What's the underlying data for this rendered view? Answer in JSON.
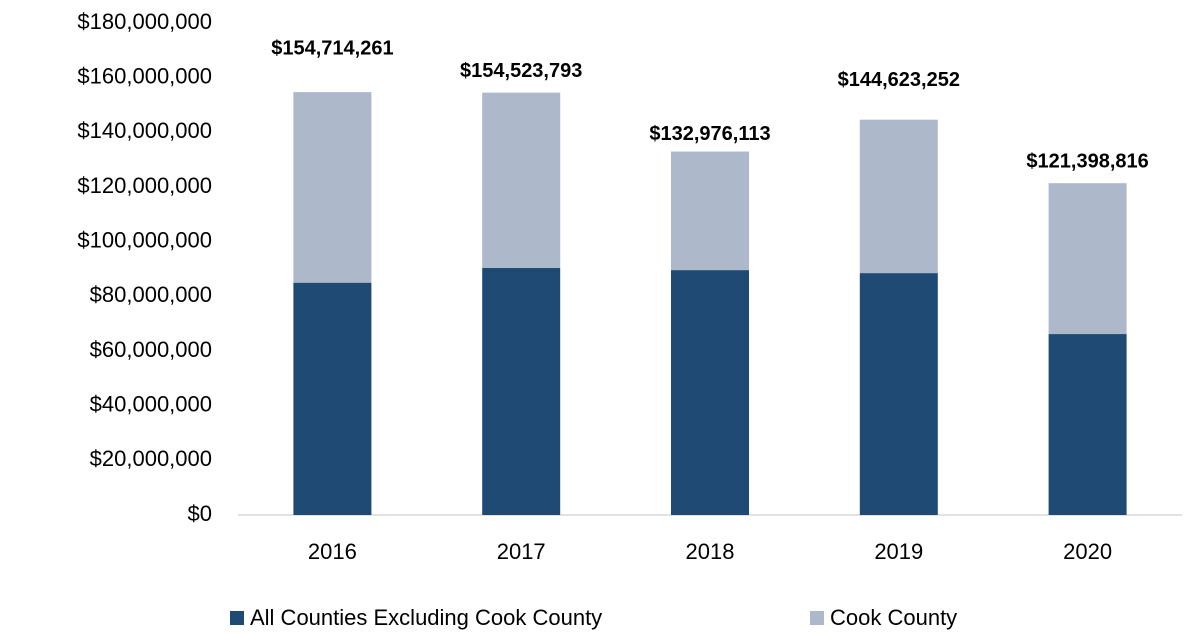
{
  "chart_data": {
    "type": "stacked_bar",
    "categories": [
      "2016",
      "2017",
      "2018",
      "2019",
      "2020"
    ],
    "series": [
      {
        "name": "All Counties Excluding Cook County",
        "color": "#1f4a74",
        "values": [
          85000000,
          90400000,
          89600000,
          88500000,
          66200000
        ]
      },
      {
        "name": "Cook County",
        "color": "#adb9ca",
        "values": [
          69714261,
          64123793,
          43376113,
          56123252,
          55198816
        ]
      }
    ],
    "total_labels": [
      "$154,714,261",
      "$154,523,793",
      "$132,976,113",
      "$144,623,252",
      "$121,398,816"
    ],
    "ylim": [
      0,
      180000000
    ],
    "yticks": [
      {
        "value": 0,
        "label": "$0"
      },
      {
        "value": 20000000,
        "label": "$20,000,000"
      },
      {
        "value": 40000000,
        "label": "$40,000,000"
      },
      {
        "value": 60000000,
        "label": "$60,000,000"
      },
      {
        "value": 80000000,
        "label": "$80,000,000"
      },
      {
        "value": 100000000,
        "label": "$100,000,000"
      },
      {
        "value": 120000000,
        "label": "$120,000,000"
      },
      {
        "value": 140000000,
        "label": "$140,000,000"
      },
      {
        "value": 160000000,
        "label": "$160,000,000"
      },
      {
        "value": 180000000,
        "label": "$180,000,000"
      }
    ],
    "grid": false,
    "legend": "bottom"
  }
}
